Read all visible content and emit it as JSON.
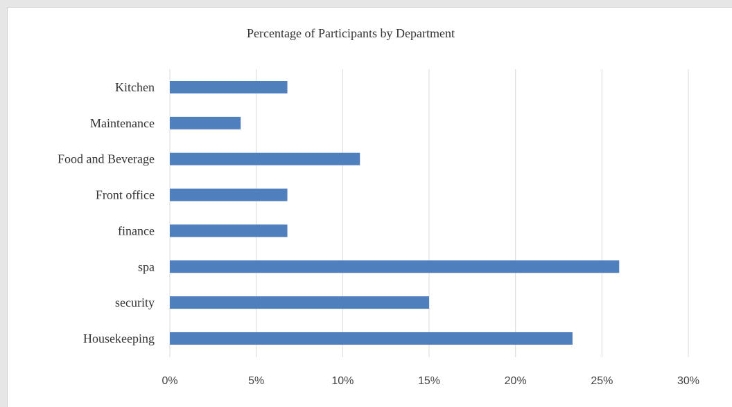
{
  "chart_data": {
    "type": "bar",
    "orientation": "horizontal",
    "title": "Percentage of Participants by Department",
    "xlabel": "",
    "ylabel": "",
    "categories": [
      "Kitchen",
      "Maintenance",
      "Food and Beverage",
      "Front office",
      "finance",
      "spa",
      "security",
      "Housekeeping"
    ],
    "values": [
      0.068,
      0.041,
      0.11,
      0.068,
      0.068,
      0.26,
      0.15,
      0.233
    ],
    "xlim": [
      0,
      0.3
    ],
    "xticks": [
      0,
      0.05,
      0.1,
      0.15,
      0.2,
      0.25,
      0.3
    ],
    "xtick_labels": [
      "0%",
      "5%",
      "10%",
      "15%",
      "20%",
      "25%",
      "30%"
    ],
    "grid": "vertical",
    "legend": "none",
    "bar_color": "#4f7fbd"
  }
}
